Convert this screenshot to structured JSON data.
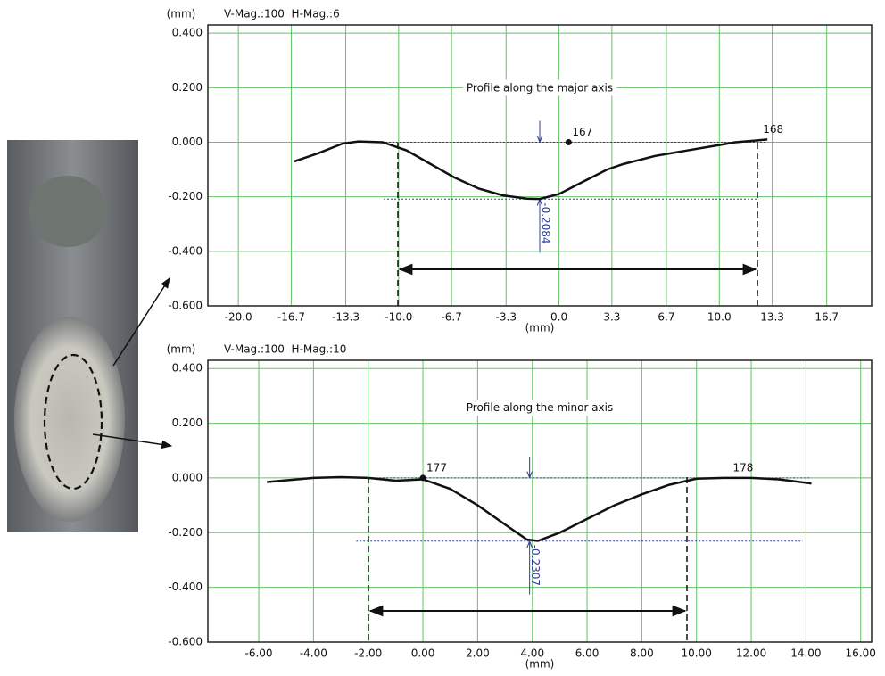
{
  "chart_data": [
    {
      "type": "line",
      "title": "Profile along the major axis",
      "y_unit": "(mm)",
      "x_unit": "(mm)",
      "magnification": "V-Mag.:100  H-Mag.:6",
      "x": [
        -16.5,
        -15,
        -13.5,
        -12.5,
        -11,
        -9.5,
        -8,
        -6.5,
        -5,
        -3.5,
        -2,
        -1.2,
        0,
        1,
        2,
        3,
        4,
        6,
        8,
        10,
        11,
        12,
        13
      ],
      "series": [
        {
          "color": "#111111",
          "values": [
            -0.07,
            -0.04,
            -0.005,
            0.003,
            0,
            -0.03,
            -0.08,
            -0.13,
            -0.17,
            -0.195,
            -0.207,
            -0.208,
            -0.19,
            -0.16,
            -0.13,
            -0.1,
            -0.08,
            -0.05,
            -0.03,
            -0.01,
            0,
            0.005,
            0.01
          ]
        }
      ],
      "xlim": [
        -21.9,
        19.5
      ],
      "ylim": [
        -0.6,
        0.43
      ],
      "xticks": [
        {
          "value": -20,
          "label": "-20.0"
        },
        -16.7,
        -13.3,
        {
          "value": -10,
          "label": "-10.0"
        },
        -6.7,
        -3.3,
        {
          "value": 0,
          "label": "0.0"
        },
        3.3,
        6.7,
        {
          "value": 10,
          "label": "10.0"
        },
        13.3,
        16.7
      ],
      "yticks": [
        {
          "value": 0.4,
          "label": "0.400"
        },
        {
          "value": 0.2,
          "label": "0.200"
        },
        {
          "value": 0,
          "label": "0.000"
        },
        {
          "value": -0.2,
          "label": "-0.200"
        },
        {
          "value": -0.4,
          "label": "-0.400"
        },
        {
          "value": -0.6,
          "label": "-0.600"
        }
      ],
      "grid": true,
      "points": [
        {
          "label": "167",
          "x": 0.6,
          "y": 0
        },
        {
          "label": "168",
          "x": 12.5,
          "y": 0.01
        }
      ],
      "depth": {
        "value": -0.2084,
        "x": -1.2
      }
    },
    {
      "type": "line",
      "title": "Profile along the minor axis",
      "y_unit": "(mm)",
      "x_unit": "(mm)",
      "magnification": "V-Mag.:100  H-Mag.:10",
      "x": [
        -5.7,
        -4,
        -3,
        -2,
        -1,
        0,
        1,
        2,
        3,
        3.8,
        4.2,
        5,
        6,
        7,
        8,
        9,
        10,
        11,
        12,
        13,
        14.2
      ],
      "series": [
        {
          "color": "#111111",
          "values": [
            -0.015,
            0,
            0.003,
            0,
            -0.01,
            -0.005,
            -0.04,
            -0.1,
            -0.17,
            -0.225,
            -0.23,
            -0.2,
            -0.15,
            -0.1,
            -0.06,
            -0.025,
            -0.003,
            0,
            0,
            -0.005,
            -0.02
          ]
        }
      ],
      "xlim": [
        -7.86,
        16.4
      ],
      "ylim": [
        -0.6,
        0.43
      ],
      "xticks": [
        {
          "value": -6,
          "label": "-6.00"
        },
        {
          "value": -4,
          "label": "-4.00"
        },
        {
          "value": -2,
          "label": "-2.00"
        },
        {
          "value": 0,
          "label": "0.00"
        },
        {
          "value": 2,
          "label": "2.00"
        },
        {
          "value": 4,
          "label": "4.00"
        },
        {
          "value": 6,
          "label": "6.00"
        },
        {
          "value": 8,
          "label": "8.00"
        },
        {
          "value": 10,
          "label": "10.00"
        },
        {
          "value": 12,
          "label": "12.00"
        },
        {
          "value": 14,
          "label": "14.00"
        },
        {
          "value": 16,
          "label": "16.00"
        }
      ],
      "yticks": [
        {
          "value": 0.4,
          "label": "0.400"
        },
        {
          "value": 0.2,
          "label": "0.200"
        },
        {
          "value": 0,
          "label": "0.000"
        },
        {
          "value": -0.2,
          "label": "-0.200"
        },
        {
          "value": -0.4,
          "label": "-0.400"
        },
        {
          "value": -0.6,
          "label": "-0.600"
        }
      ],
      "grid": true,
      "points": [
        {
          "label": "177",
          "x": 0,
          "y": 0
        },
        {
          "label": "178",
          "x": 11.2,
          "y": 0
        }
      ],
      "depth": {
        "value": -0.2307,
        "x": 3.9
      }
    }
  ]
}
